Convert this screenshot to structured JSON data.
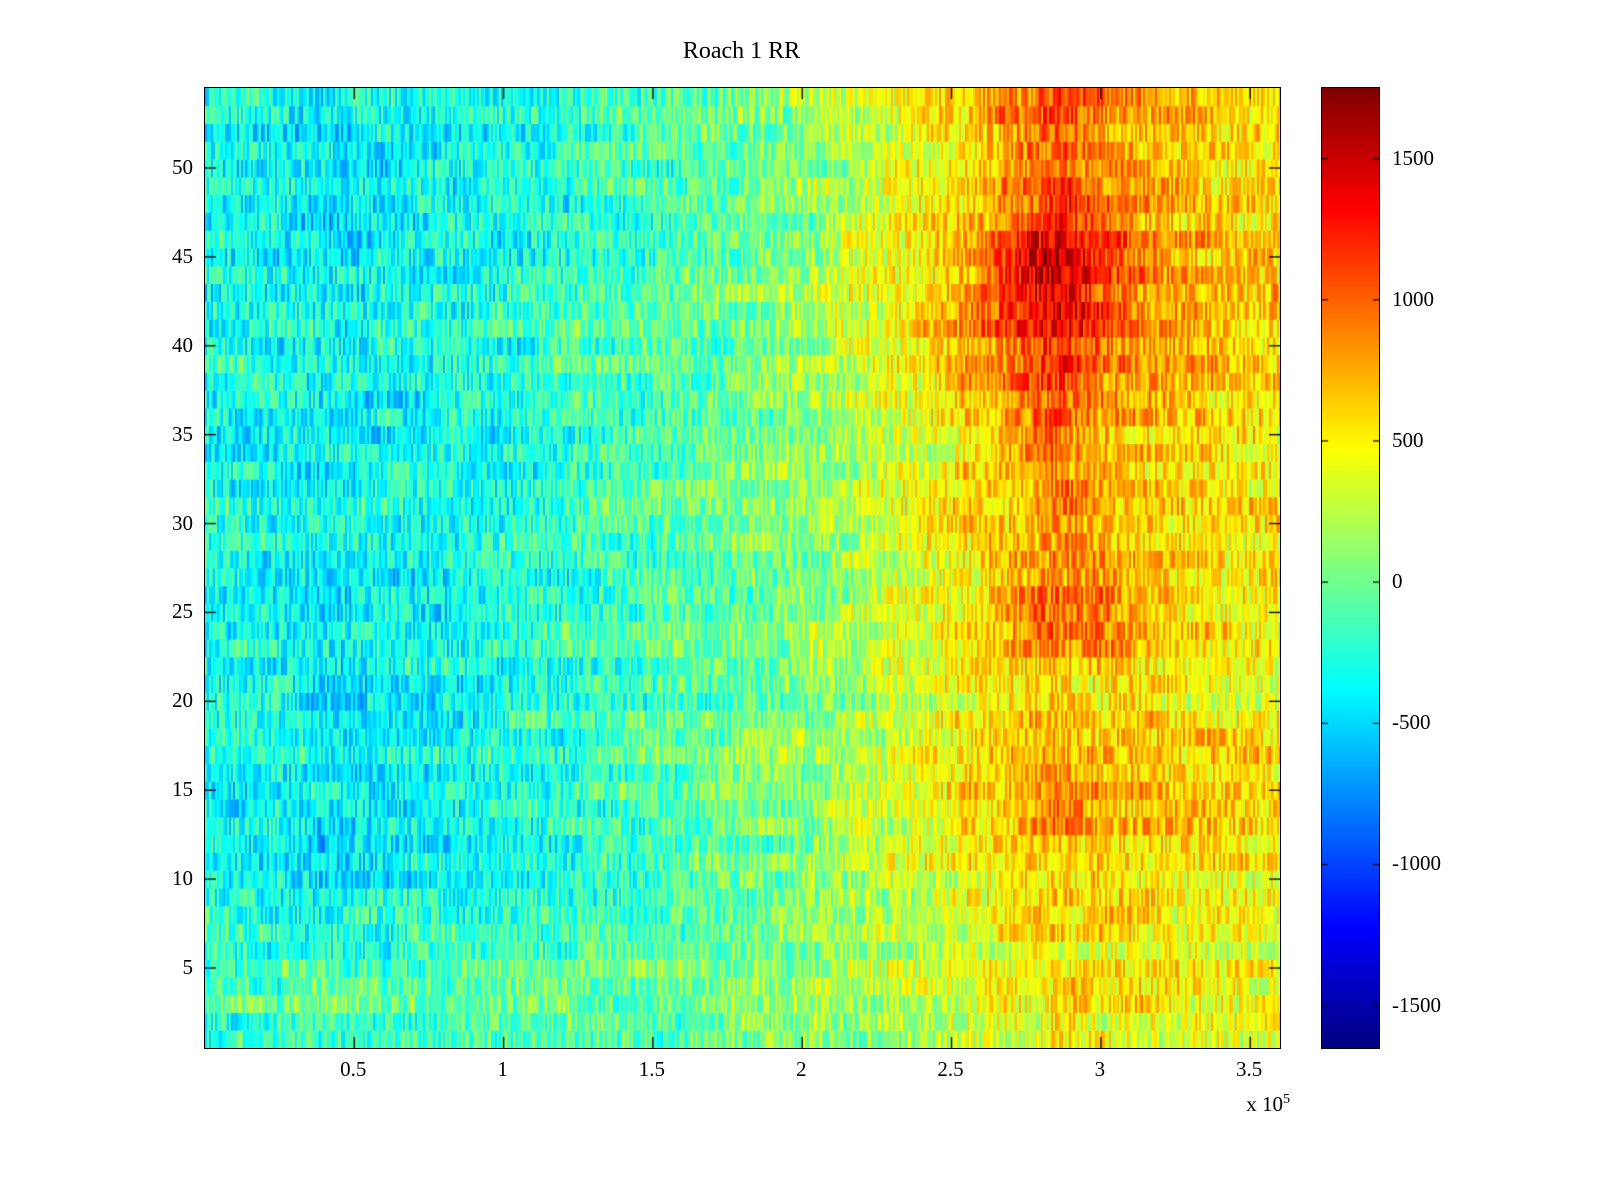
{
  "chart_data": {
    "type": "heatmap",
    "title": "Roach 1 RR",
    "colormap": "jet",
    "x_label": "",
    "y_label": "",
    "x_range": [
      0,
      360000
    ],
    "y_range": [
      0.5,
      54.5
    ],
    "n_rows": 54,
    "x_multiplier_base": "x 10",
    "x_multiplier_exp": "5",
    "x_ticks": [
      {
        "value": 50000,
        "label": "0.5"
      },
      {
        "value": 100000,
        "label": "1"
      },
      {
        "value": 150000,
        "label": "1.5"
      },
      {
        "value": 200000,
        "label": "2"
      },
      {
        "value": 250000,
        "label": "2.5"
      },
      {
        "value": 300000,
        "label": "3"
      },
      {
        "value": 350000,
        "label": "3.5"
      }
    ],
    "y_ticks": [
      {
        "value": 5,
        "label": "5"
      },
      {
        "value": 10,
        "label": "10"
      },
      {
        "value": 15,
        "label": "15"
      },
      {
        "value": 20,
        "label": "20"
      },
      {
        "value": 25,
        "label": "25"
      },
      {
        "value": 30,
        "label": "30"
      },
      {
        "value": 35,
        "label": "35"
      },
      {
        "value": 40,
        "label": "40"
      },
      {
        "value": 45,
        "label": "45"
      },
      {
        "value": 50,
        "label": "50"
      }
    ],
    "colorbar": {
      "clim": [
        -1650,
        1750
      ],
      "ticks": [
        {
          "value": 1500,
          "label": "1500"
        },
        {
          "value": 1000,
          "label": "1000"
        },
        {
          "value": 500,
          "label": "500"
        },
        {
          "value": 0,
          "label": "0"
        },
        {
          "value": -500,
          "label": "-500"
        },
        {
          "value": -1000,
          "label": "-1000"
        },
        {
          "value": -1500,
          "label": "-1500"
        }
      ]
    },
    "grid": {
      "x_centers": [
        15000,
        45000,
        75000,
        105000,
        135000,
        165000,
        195000,
        225000,
        255000,
        285000,
        315000,
        345000
      ],
      "y_centers": [
        5,
        10,
        15,
        20,
        25,
        30,
        35,
        40,
        45,
        50
      ],
      "values": [
        [
          -150,
          -120,
          -100,
          -80,
          -50,
          0,
          80,
          200,
          350,
          500,
          450,
          400
        ],
        [
          -300,
          -380,
          -350,
          -250,
          -180,
          -80,
          50,
          200,
          450,
          700,
          600,
          500
        ],
        [
          -350,
          -450,
          -400,
          -300,
          -200,
          -100,
          50,
          250,
          550,
          900,
          700,
          600
        ],
        [
          -300,
          -400,
          -380,
          -280,
          -180,
          -80,
          60,
          220,
          450,
          650,
          550,
          450
        ],
        [
          -280,
          -350,
          -330,
          -250,
          -150,
          -50,
          100,
          300,
          600,
          1100,
          700,
          550
        ],
        [
          -300,
          -380,
          -350,
          -260,
          -160,
          -60,
          80,
          260,
          500,
          800,
          600,
          500
        ],
        [
          -320,
          -400,
          -360,
          -270,
          -170,
          -70,
          80,
          280,
          550,
          950,
          700,
          550
        ],
        [
          -300,
          -380,
          -350,
          -250,
          -150,
          -50,
          120,
          350,
          700,
          1300,
          800,
          600
        ],
        [
          -320,
          -400,
          -370,
          -270,
          -160,
          -60,
          120,
          380,
          750,
          1550,
          900,
          650
        ],
        [
          -350,
          -420,
          -380,
          -290,
          -190,
          -90,
          60,
          280,
          600,
          1000,
          750,
          550
        ]
      ]
    },
    "noise": {
      "seed": 1337,
      "cell_amplitude": 320,
      "block_amplitude": 140,
      "block_width_cells": 18,
      "row_amplitude": 70
    }
  },
  "colors": {
    "background": "#ffffff",
    "axis": "#000000",
    "text": "#000000"
  }
}
